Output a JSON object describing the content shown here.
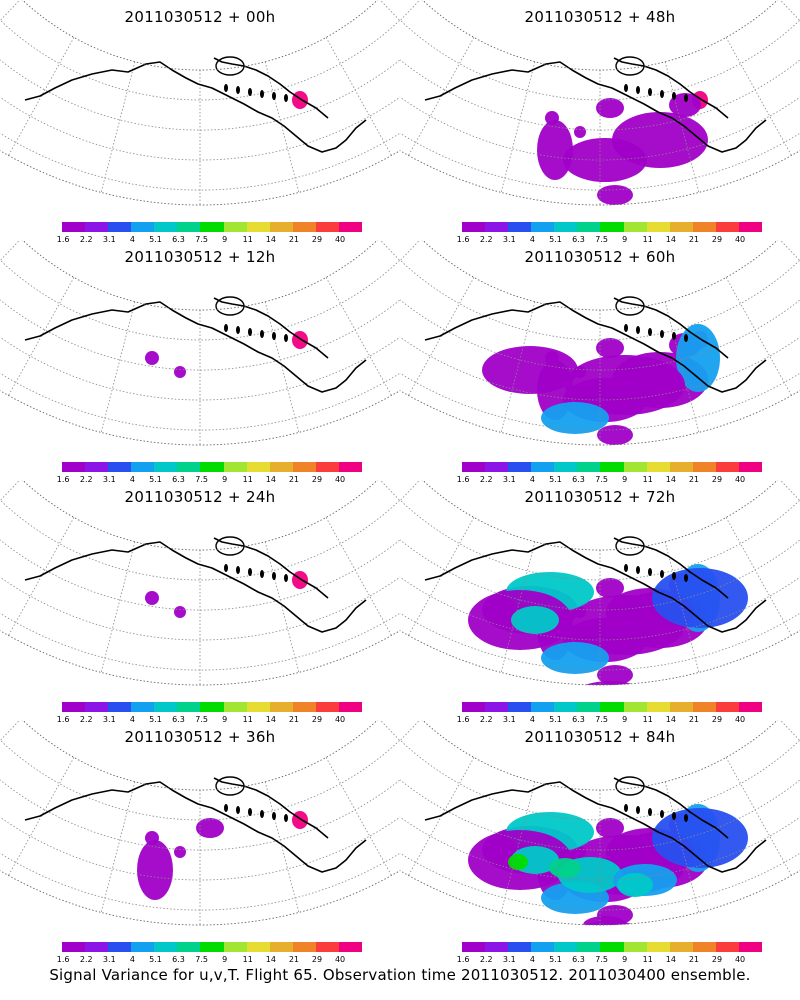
{
  "colorbar": {
    "labels": [
      "1.6",
      "2.2",
      "3.1",
      "4",
      "5.1",
      "6.3",
      "7.5",
      "9",
      "11",
      "14",
      "21",
      "29",
      "40"
    ],
    "colors": [
      "#a000c8",
      "#8c14e6",
      "#2850f0",
      "#14a0f0",
      "#00c8c8",
      "#00d28c",
      "#00dc00",
      "#a0e632",
      "#e6dc32",
      "#e6af2d",
      "#f08228",
      "#fa3c3c",
      "#f00082"
    ]
  },
  "panels": [
    {
      "title": "2011030512 + 00h",
      "signal_level": 0
    },
    {
      "title": "2011030512 + 48h",
      "signal_level": 3
    },
    {
      "title": "2011030512 + 12h",
      "signal_level": 1
    },
    {
      "title": "2011030512 + 60h",
      "signal_level": 4
    },
    {
      "title": "2011030512 + 24h",
      "signal_level": 1
    },
    {
      "title": "2011030512 + 72h",
      "signal_level": 5
    },
    {
      "title": "2011030512 + 36h",
      "signal_level": 2
    },
    {
      "title": "2011030512 + 84h",
      "signal_level": 6
    }
  ],
  "caption": "Signal Variance for u,v,T. Flight 65. Observation time 2011030512. 2011030400 ensemble."
}
